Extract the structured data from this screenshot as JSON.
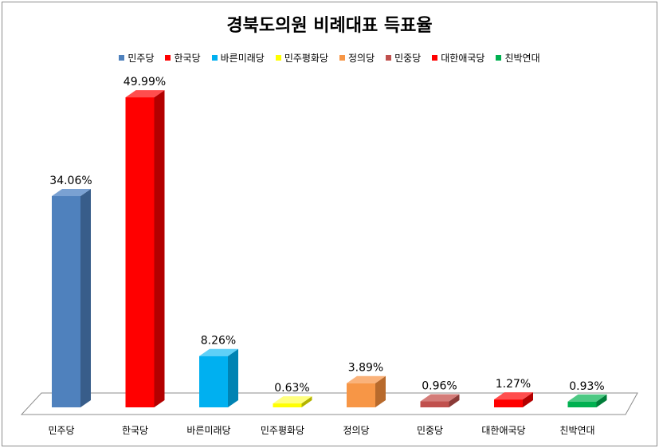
{
  "chart_data": {
    "type": "bar",
    "title": "경북도의원 비례대표 득표율",
    "categories": [
      "민주당",
      "한국당",
      "바른미래당",
      "민주평화당",
      "정의당",
      "민중당",
      "대한애국당",
      "친박연대"
    ],
    "values": [
      34.06,
      49.99,
      8.26,
      0.63,
      3.89,
      0.96,
      1.27,
      0.93
    ],
    "data_labels": [
      "34.06%",
      "49.99%",
      "8.26%",
      "0.63%",
      "3.89%",
      "0.96%",
      "1.27%",
      "0.93%"
    ],
    "colors": [
      "#4f81bd",
      "#ff0000",
      "#00b0f0",
      "#ffff00",
      "#f79646",
      "#c0504d",
      "#ff0000",
      "#00b050"
    ],
    "side_colors": [
      "#385d8a",
      "#b30000",
      "#0083b3",
      "#b3b300",
      "#b86a2c",
      "#8a3a37",
      "#b30000",
      "#007d39"
    ],
    "top_colors": [
      "#7aa1d2",
      "#ff4d4d",
      "#5fd0f7",
      "#ffff80",
      "#fab27a",
      "#d47c79",
      "#ff4d4d",
      "#4dc983"
    ],
    "ylim": [
      0,
      50
    ],
    "legend": [
      "민주당",
      "한국당",
      "바른미래당",
      "민주평화당",
      "정의당",
      "민중당",
      "대한애국당",
      "친박연대"
    ],
    "legend_position": "top",
    "grid": false,
    "xlabel": "",
    "ylabel": ""
  }
}
